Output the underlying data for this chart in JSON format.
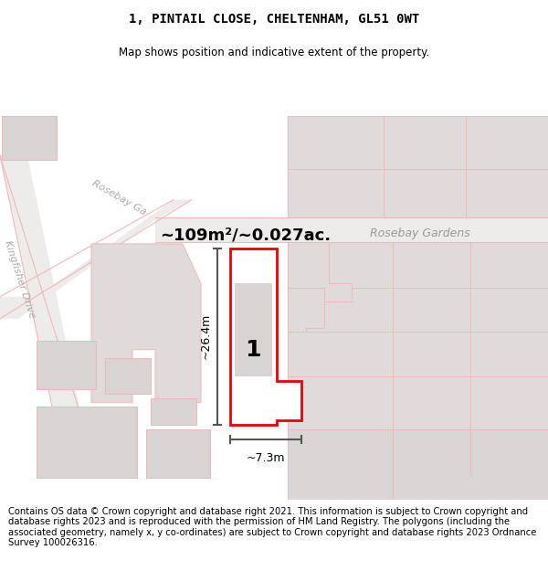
{
  "title": "1, PINTAIL CLOSE, CHELTENHAM, GL51 0WT",
  "subtitle": "Map shows position and indicative extent of the property.",
  "area_text": "~109m²/~0.027ac.",
  "street_rosebay_gardens": "Rosebay Gardens",
  "street_kingfisher": "Kingfisher Drive",
  "street_rosebay_ga": "Rosebay Ga",
  "dim_height": "~26.4m",
  "dim_width": "~7.3m",
  "label_number": "1",
  "footer": "Contains OS data © Crown copyright and database right 2021. This information is subject to Crown copyright and database rights 2023 and is reproduced with the permission of HM Land Registry. The polygons (including the associated geometry, namely x, y co-ordinates) are subject to Crown copyright and database rights 2023 Ordnance Survey 100026316.",
  "title_fontsize": 10,
  "subtitle_fontsize": 8.5,
  "footer_fontsize": 7.2,
  "area_fontsize": 13,
  "street_fontsize": 9,
  "dim_fontsize": 9,
  "label_fontsize": 18
}
